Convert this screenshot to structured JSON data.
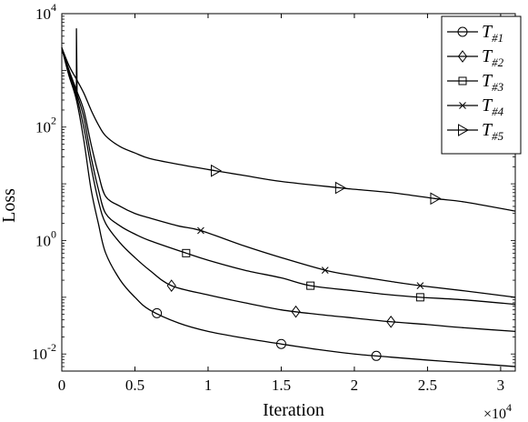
{
  "chart_data": {
    "type": "line",
    "title": "",
    "xlabel": "Iteration",
    "ylabel": "Loss",
    "x_scale_label": "×10",
    "x_scale_exp": "4",
    "xlim": [
      0,
      3.1
    ],
    "ylim": [
      0.005,
      10000
    ],
    "yscale": "log",
    "xticks": [
      0,
      0.5,
      1,
      1.5,
      2,
      2.5,
      3
    ],
    "xtick_labels": [
      "0",
      "0.5",
      "1",
      "1.5",
      "2",
      "2.5",
      "3"
    ],
    "yticks": [
      {
        "value": 0.01,
        "base": "10",
        "exp": "-2"
      },
      {
        "value": 1,
        "base": "10",
        "exp": "0"
      },
      {
        "value": 100,
        "base": "10",
        "exp": "2"
      },
      {
        "value": 10000,
        "base": "10",
        "exp": "4"
      }
    ],
    "legend_placement": "top-right",
    "grid": false,
    "series": [
      {
        "name": "T",
        "subscript": "#1",
        "marker": "circle",
        "x": [
          0,
          0.05,
          0.1,
          0.15,
          0.2,
          0.25,
          0.3,
          0.4,
          0.5,
          0.6,
          0.8,
          1.0,
          1.25,
          1.5,
          1.75,
          2.0,
          2.25,
          2.5,
          2.75,
          3.1
        ],
        "y": [
          2500,
          800,
          300,
          60,
          8,
          2,
          0.6,
          0.2,
          0.1,
          0.06,
          0.035,
          0.025,
          0.019,
          0.015,
          0.012,
          0.01,
          0.0088,
          0.0078,
          0.007,
          0.006
        ],
        "marker_x": [
          0.65,
          1.5,
          2.15
        ]
      },
      {
        "name": "T",
        "subscript": "#2",
        "marker": "diamond",
        "x": [
          0,
          0.05,
          0.1,
          0.15,
          0.2,
          0.25,
          0.3,
          0.4,
          0.5,
          0.6,
          0.75,
          1.0,
          1.25,
          1.5,
          1.75,
          2.0,
          2.25,
          2.5,
          2.75,
          3.1
        ],
        "y": [
          2500,
          800,
          350,
          100,
          20,
          5,
          2,
          0.9,
          0.5,
          0.3,
          0.16,
          0.11,
          0.08,
          0.06,
          0.05,
          0.043,
          0.037,
          0.033,
          0.029,
          0.025
        ],
        "marker_x": [
          0.75,
          1.6,
          2.25
        ]
      },
      {
        "name": "T",
        "subscript": "#3",
        "marker": "square",
        "x": [
          0,
          0.05,
          0.1,
          0.15,
          0.2,
          0.25,
          0.3,
          0.4,
          0.5,
          0.6,
          0.85,
          1.0,
          1.25,
          1.5,
          1.7,
          2.0,
          2.25,
          2.45,
          2.75,
          3.1
        ],
        "y": [
          2500,
          900,
          400,
          150,
          30,
          8,
          3,
          1.8,
          1.3,
          1.0,
          0.6,
          0.45,
          0.3,
          0.22,
          0.16,
          0.13,
          0.11,
          0.1,
          0.09,
          0.075
        ],
        "marker_x": [
          0.85,
          1.7,
          2.45
        ]
      },
      {
        "name": "T",
        "subscript": "#4",
        "marker": "x",
        "x": [
          0,
          0.05,
          0.1,
          0.15,
          0.2,
          0.25,
          0.3,
          0.4,
          0.5,
          0.6,
          0.8,
          0.95,
          1.25,
          1.5,
          1.8,
          2.0,
          2.25,
          2.45,
          2.75,
          3.1
        ],
        "y": [
          2500,
          1000,
          450,
          200,
          50,
          15,
          6,
          4,
          3,
          2.5,
          1.8,
          1.5,
          0.8,
          0.5,
          0.3,
          0.24,
          0.19,
          0.16,
          0.13,
          0.1
        ],
        "marker_x": [
          0.95,
          1.8,
          2.45
        ]
      },
      {
        "name": "T",
        "subscript": "#5",
        "marker": "triangle-right",
        "x": [
          0,
          0.05,
          0.1,
          0.15,
          0.2,
          0.25,
          0.3,
          0.4,
          0.5,
          0.6,
          0.8,
          1.05,
          1.25,
          1.5,
          1.9,
          2.0,
          2.25,
          2.55,
          2.75,
          3.1
        ],
        "y": [
          2500,
          1200,
          700,
          400,
          200,
          110,
          70,
          45,
          35,
          28,
          22,
          17,
          14,
          11,
          8.5,
          8,
          7,
          5.5,
          4.8,
          3.3
        ],
        "marker_x": [
          1.05,
          1.9,
          2.55
        ]
      }
    ]
  }
}
